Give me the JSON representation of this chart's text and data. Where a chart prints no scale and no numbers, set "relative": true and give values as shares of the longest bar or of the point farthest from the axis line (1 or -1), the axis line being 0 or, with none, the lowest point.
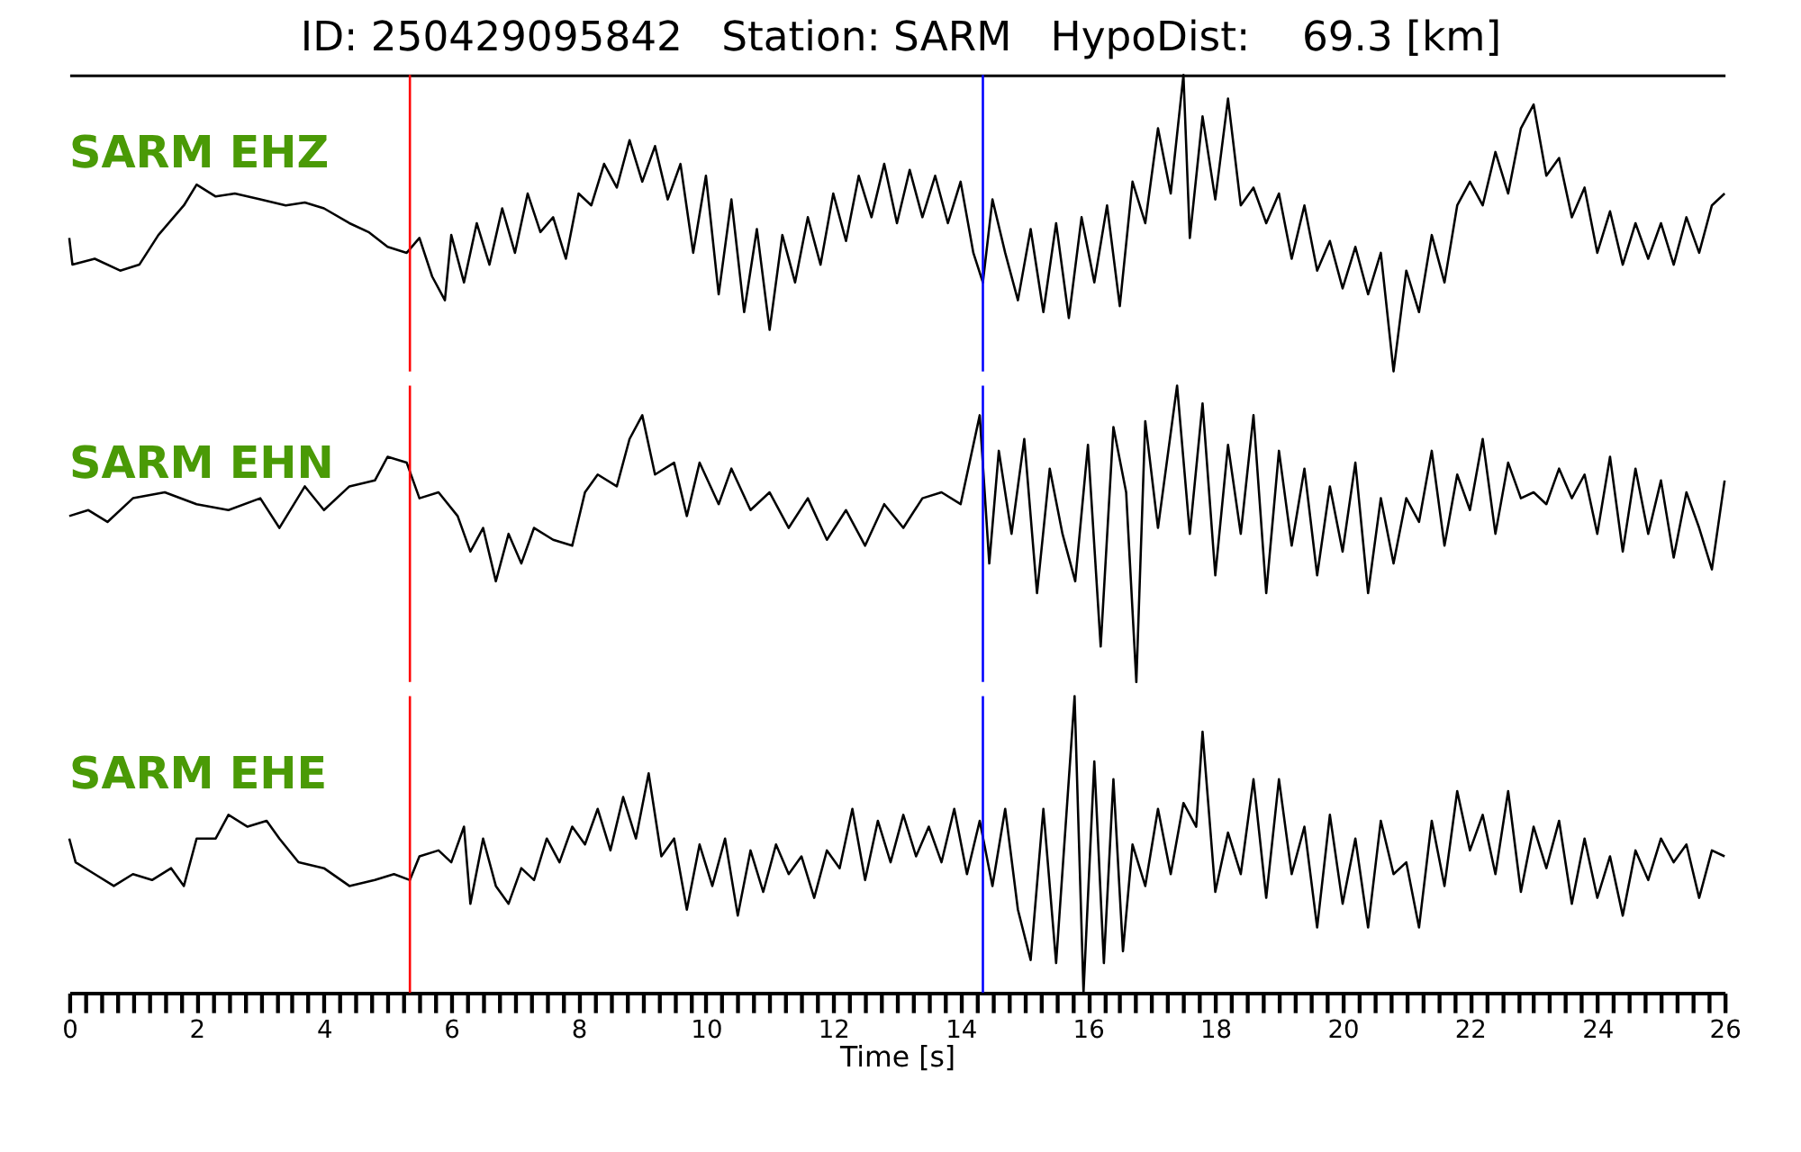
{
  "chart_data": [
    {
      "type": "line",
      "title": "ID: 250429095842   Station: SARM   HypoDist:    69.3 [km]",
      "relative": true,
      "xlim": [
        0,
        26
      ],
      "tick_labels": false,
      "grid": false,
      "marker": "none",
      "line_style": "solid",
      "ref_lines": [
        {
          "axis": "x",
          "value": 5.35,
          "color": "#ff0000"
        },
        {
          "axis": "x",
          "value": 14.35,
          "color": "#0000ff"
        }
      ],
      "x": [
        0,
        0.05,
        0.4,
        0.8,
        1.1,
        1.4,
        1.8,
        2.0,
        2.3,
        2.6,
        3.0,
        3.4,
        3.7,
        4.0,
        4.4,
        4.7,
        5.0,
        5.3,
        5.5,
        5.7,
        5.9,
        6.0,
        6.2,
        6.4,
        6.6,
        6.8,
        7.0,
        7.2,
        7.4,
        7.6,
        7.8,
        8.0,
        8.2,
        8.4,
        8.6,
        8.8,
        9.0,
        9.2,
        9.4,
        9.6,
        9.8,
        10.0,
        10.2,
        10.4,
        10.6,
        10.8,
        11.0,
        11.2,
        11.4,
        11.6,
        11.8,
        12.0,
        12.2,
        12.4,
        12.6,
        12.8,
        13.0,
        13.2,
        13.4,
        13.6,
        13.8,
        14.0,
        14.2,
        14.35,
        14.5,
        14.7,
        14.9,
        15.1,
        15.3,
        15.5,
        15.7,
        15.9,
        16.1,
        16.3,
        16.5,
        16.7,
        16.9,
        17.1,
        17.3,
        17.5,
        17.6,
        17.8,
        18.0,
        18.2,
        18.4,
        18.6,
        18.8,
        19.0,
        19.2,
        19.4,
        19.6,
        19.8,
        20.0,
        20.2,
        20.4,
        20.6,
        20.8,
        21.0,
        21.2,
        21.4,
        21.6,
        21.8,
        22.0,
        22.2,
        22.4,
        22.6,
        22.8,
        23.0,
        23.2,
        23.4,
        23.6,
        23.8,
        24.0,
        24.2,
        24.4,
        24.6,
        24.8,
        25.0,
        25.2,
        25.4,
        25.6,
        25.8,
        26.0
      ],
      "series": [
        {
          "name": "SARM EHZ",
          "color": "#000000",
          "values": [
            0.45,
            0.36,
            0.38,
            0.34,
            0.36,
            0.46,
            0.56,
            0.63,
            0.59,
            0.6,
            0.58,
            0.56,
            0.57,
            0.55,
            0.5,
            0.47,
            0.42,
            0.4,
            0.45,
            0.32,
            0.24,
            0.46,
            0.3,
            0.5,
            0.36,
            0.55,
            0.4,
            0.6,
            0.47,
            0.52,
            0.38,
            0.6,
            0.56,
            0.7,
            0.62,
            0.78,
            0.64,
            0.76,
            0.58,
            0.7,
            0.4,
            0.66,
            0.26,
            0.58,
            0.2,
            0.48,
            0.14,
            0.46,
            0.3,
            0.52,
            0.36,
            0.6,
            0.44,
            0.66,
            0.52,
            0.7,
            0.5,
            0.68,
            0.52,
            0.66,
            0.5,
            0.64,
            0.4,
            0.3,
            0.58,
            0.4,
            0.24,
            0.48,
            0.2,
            0.5,
            0.18,
            0.52,
            0.3,
            0.56,
            0.22,
            0.64,
            0.5,
            0.82,
            0.6,
            1.0,
            0.45,
            0.86,
            0.58,
            0.92,
            0.56,
            0.62,
            0.5,
            0.6,
            0.38,
            0.56,
            0.34,
            0.44,
            0.28,
            0.42,
            0.26,
            0.4,
            0.0,
            0.34,
            0.2,
            0.46,
            0.3,
            0.56,
            0.64,
            0.56,
            0.74,
            0.6,
            0.82,
            0.9,
            0.66,
            0.72,
            0.52,
            0.62,
            0.4,
            0.54,
            0.36,
            0.5,
            0.38,
            0.5,
            0.36,
            0.52,
            0.4,
            0.56,
            0.6
          ]
        }
      ]
    },
    {
      "type": "line",
      "relative": true,
      "xlim": [
        0,
        26
      ],
      "tick_labels": false,
      "grid": false,
      "marker": "none",
      "line_style": "solid",
      "ref_lines": [
        {
          "axis": "x",
          "value": 5.35,
          "color": "#ff0000"
        },
        {
          "axis": "x",
          "value": 14.35,
          "color": "#0000ff"
        }
      ],
      "x": [
        0,
        0.3,
        0.6,
        1.0,
        1.5,
        2.0,
        2.5,
        3.0,
        3.3,
        3.7,
        4.0,
        4.4,
        4.8,
        5.0,
        5.3,
        5.5,
        5.8,
        6.1,
        6.3,
        6.5,
        6.7,
        6.9,
        7.1,
        7.3,
        7.6,
        7.9,
        8.1,
        8.3,
        8.6,
        8.8,
        9.0,
        9.2,
        9.5,
        9.7,
        9.9,
        10.2,
        10.4,
        10.7,
        11.0,
        11.3,
        11.6,
        11.9,
        12.2,
        12.5,
        12.8,
        13.1,
        13.4,
        13.7,
        14.0,
        14.3,
        14.45,
        14.6,
        14.8,
        15.0,
        15.2,
        15.4,
        15.6,
        15.8,
        16.0,
        16.2,
        16.4,
        16.6,
        16.76,
        16.9,
        17.1,
        17.4,
        17.6,
        17.8,
        18.0,
        18.2,
        18.4,
        18.6,
        18.8,
        19.0,
        19.2,
        19.4,
        19.6,
        19.8,
        20.0,
        20.2,
        20.4,
        20.6,
        20.8,
        21.0,
        21.2,
        21.4,
        21.6,
        21.8,
        22.0,
        22.2,
        22.4,
        22.6,
        22.8,
        23.0,
        23.2,
        23.4,
        23.6,
        23.8,
        24.0,
        24.2,
        24.4,
        24.6,
        24.8,
        25.0,
        25.2,
        25.4,
        25.6,
        25.8,
        26.0
      ],
      "series": [
        {
          "name": "SARM EHN",
          "color": "#000000",
          "values": [
            0.56,
            0.58,
            0.54,
            0.62,
            0.64,
            0.6,
            0.58,
            0.62,
            0.52,
            0.66,
            0.58,
            0.66,
            0.68,
            0.76,
            0.74,
            0.62,
            0.64,
            0.56,
            0.44,
            0.52,
            0.34,
            0.5,
            0.4,
            0.52,
            0.48,
            0.46,
            0.64,
            0.7,
            0.66,
            0.82,
            0.9,
            0.7,
            0.74,
            0.56,
            0.74,
            0.6,
            0.72,
            0.58,
            0.64,
            0.52,
            0.62,
            0.48,
            0.58,
            0.46,
            0.6,
            0.52,
            0.62,
            0.64,
            0.6,
            0.9,
            0.4,
            0.78,
            0.5,
            0.82,
            0.3,
            0.72,
            0.5,
            0.34,
            0.8,
            0.12,
            0.86,
            0.64,
            0.0,
            0.88,
            0.52,
            1.0,
            0.5,
            0.94,
            0.36,
            0.8,
            0.5,
            0.9,
            0.3,
            0.78,
            0.46,
            0.72,
            0.36,
            0.66,
            0.44,
            0.74,
            0.3,
            0.62,
            0.4,
            0.62,
            0.54,
            0.78,
            0.46,
            0.7,
            0.58,
            0.82,
            0.5,
            0.74,
            0.62,
            0.64,
            0.6,
            0.72,
            0.62,
            0.7,
            0.5,
            0.76,
            0.44,
            0.72,
            0.5,
            0.68,
            0.42,
            0.64,
            0.52,
            0.38,
            0.68
          ]
        }
      ]
    },
    {
      "type": "line",
      "relative": true,
      "xlabel": "Time [s]",
      "xlim": [
        0,
        26
      ],
      "tick_labels": "x",
      "grid": false,
      "marker": "none",
      "line_style": "solid",
      "xticks": [
        0,
        {
          "value": 0.25,
          "label": null
        },
        {
          "value": 0.5,
          "label": null
        },
        {
          "value": 0.75,
          "label": null
        },
        {
          "value": 1,
          "label": null
        },
        {
          "value": 1.25,
          "label": null
        },
        {
          "value": 1.5,
          "label": null
        },
        {
          "value": 1.75,
          "label": null
        },
        2,
        {
          "value": 2.25,
          "label": null
        },
        {
          "value": 2.5,
          "label": null
        },
        {
          "value": 2.75,
          "label": null
        },
        {
          "value": 3,
          "label": null
        },
        {
          "value": 3.25,
          "label": null
        },
        {
          "value": 3.5,
          "label": null
        },
        {
          "value": 3.75,
          "label": null
        },
        4,
        {
          "value": 4.25,
          "label": null
        },
        {
          "value": 4.5,
          "label": null
        },
        {
          "value": 4.75,
          "label": null
        },
        {
          "value": 5,
          "label": null
        },
        {
          "value": 5.25,
          "label": null
        },
        {
          "value": 5.5,
          "label": null
        },
        {
          "value": 5.75,
          "label": null
        },
        6,
        {
          "value": 6.25,
          "label": null
        },
        {
          "value": 6.5,
          "label": null
        },
        {
          "value": 6.75,
          "label": null
        },
        {
          "value": 7,
          "label": null
        },
        {
          "value": 7.25,
          "label": null
        },
        {
          "value": 7.5,
          "label": null
        },
        {
          "value": 7.75,
          "label": null
        },
        8,
        {
          "value": 8.25,
          "label": null
        },
        {
          "value": 8.5,
          "label": null
        },
        {
          "value": 8.75,
          "label": null
        },
        {
          "value": 9,
          "label": null
        },
        {
          "value": 9.25,
          "label": null
        },
        {
          "value": 9.5,
          "label": null
        },
        {
          "value": 9.75,
          "label": null
        },
        10,
        {
          "value": 10.25,
          "label": null
        },
        {
          "value": 10.5,
          "label": null
        },
        {
          "value": 10.75,
          "label": null
        },
        {
          "value": 11,
          "label": null
        },
        {
          "value": 11.25,
          "label": null
        },
        {
          "value": 11.5,
          "label": null
        },
        {
          "value": 11.75,
          "label": null
        },
        12,
        {
          "value": 12.25,
          "label": null
        },
        {
          "value": 12.5,
          "label": null
        },
        {
          "value": 12.75,
          "label": null
        },
        {
          "value": 13,
          "label": null
        },
        {
          "value": 13.25,
          "label": null
        },
        {
          "value": 13.5,
          "label": null
        },
        {
          "value": 13.75,
          "label": null
        },
        14,
        {
          "value": 14.25,
          "label": null
        },
        {
          "value": 14.5,
          "label": null
        },
        {
          "value": 14.75,
          "label": null
        },
        {
          "value": 15,
          "label": null
        },
        {
          "value": 15.25,
          "label": null
        },
        {
          "value": 15.5,
          "label": null
        },
        {
          "value": 15.75,
          "label": null
        },
        16,
        {
          "value": 16.25,
          "label": null
        },
        {
          "value": 16.5,
          "label": null
        },
        {
          "value": 16.75,
          "label": null
        },
        {
          "value": 17,
          "label": null
        },
        {
          "value": 17.25,
          "label": null
        },
        {
          "value": 17.5,
          "label": null
        },
        {
          "value": 17.75,
          "label": null
        },
        18,
        {
          "value": 18.25,
          "label": null
        },
        {
          "value": 18.5,
          "label": null
        },
        {
          "value": 18.75,
          "label": null
        },
        {
          "value": 19,
          "label": null
        },
        {
          "value": 19.25,
          "label": null
        },
        {
          "value": 19.5,
          "label": null
        },
        {
          "value": 19.75,
          "label": null
        },
        20,
        {
          "value": 20.25,
          "label": null
        },
        {
          "value": 20.5,
          "label": null
        },
        {
          "value": 20.75,
          "label": null
        },
        {
          "value": 21,
          "label": null
        },
        {
          "value": 21.25,
          "label": null
        },
        {
          "value": 21.5,
          "label": null
        },
        {
          "value": 21.75,
          "label": null
        },
        22,
        {
          "value": 22.25,
          "label": null
        },
        {
          "value": 22.5,
          "label": null
        },
        {
          "value": 22.75,
          "label": null
        },
        {
          "value": 23,
          "label": null
        },
        {
          "value": 23.25,
          "label": null
        },
        {
          "value": 23.5,
          "label": null
        },
        {
          "value": 23.75,
          "label": null
        },
        24,
        {
          "value": 24.25,
          "label": null
        },
        {
          "value": 24.5,
          "label": null
        },
        {
          "value": 24.75,
          "label": null
        },
        {
          "value": 25,
          "label": null
        },
        {
          "value": 25.25,
          "label": null
        },
        {
          "value": 25.5,
          "label": null
        },
        {
          "value": 25.75,
          "label": null
        },
        26
      ],
      "ref_lines": [
        {
          "axis": "x",
          "value": 5.35,
          "color": "#ff0000"
        },
        {
          "axis": "x",
          "value": 14.35,
          "color": "#0000ff"
        }
      ],
      "x": [
        0,
        0.1,
        0.4,
        0.7,
        1.0,
        1.3,
        1.6,
        1.8,
        2.0,
        2.3,
        2.5,
        2.8,
        3.1,
        3.3,
        3.6,
        4.0,
        4.4,
        4.8,
        5.1,
        5.35,
        5.5,
        5.8,
        6.0,
        6.2,
        6.3,
        6.5,
        6.7,
        6.9,
        7.1,
        7.3,
        7.5,
        7.7,
        7.9,
        8.1,
        8.3,
        8.5,
        8.7,
        8.9,
        9.1,
        9.3,
        9.5,
        9.7,
        9.9,
        10.1,
        10.3,
        10.5,
        10.7,
        10.9,
        11.1,
        11.3,
        11.5,
        11.7,
        11.9,
        12.1,
        12.3,
        12.5,
        12.7,
        12.9,
        13.1,
        13.3,
        13.5,
        13.7,
        13.9,
        14.1,
        14.3,
        14.5,
        14.7,
        14.9,
        15.1,
        15.3,
        15.5,
        15.79,
        15.93,
        16.1,
        16.25,
        16.4,
        16.55,
        16.7,
        16.9,
        17.1,
        17.3,
        17.5,
        17.7,
        17.8,
        18.0,
        18.2,
        18.4,
        18.6,
        18.8,
        19.0,
        19.2,
        19.4,
        19.6,
        19.8,
        20.0,
        20.2,
        20.4,
        20.6,
        20.8,
        21.0,
        21.2,
        21.4,
        21.6,
        21.8,
        22.0,
        22.2,
        22.4,
        22.6,
        22.8,
        23.0,
        23.2,
        23.4,
        23.6,
        23.8,
        24.0,
        24.2,
        24.4,
        24.6,
        24.8,
        25.0,
        25.2,
        25.4,
        25.6,
        25.8,
        26.0
      ],
      "series": [
        {
          "name": "SARM EHE",
          "color": "#000000",
          "values": [
            0.52,
            0.44,
            0.4,
            0.36,
            0.4,
            0.38,
            0.42,
            0.36,
            0.52,
            0.52,
            0.6,
            0.56,
            0.58,
            0.52,
            0.44,
            0.42,
            0.36,
            0.38,
            0.4,
            0.38,
            0.46,
            0.48,
            0.44,
            0.56,
            0.3,
            0.52,
            0.36,
            0.3,
            0.42,
            0.38,
            0.52,
            0.44,
            0.56,
            0.5,
            0.62,
            0.48,
            0.66,
            0.52,
            0.74,
            0.46,
            0.52,
            0.28,
            0.5,
            0.36,
            0.52,
            0.26,
            0.48,
            0.34,
            0.5,
            0.4,
            0.46,
            0.32,
            0.48,
            0.42,
            0.62,
            0.38,
            0.58,
            0.44,
            0.6,
            0.46,
            0.56,
            0.44,
            0.62,
            0.4,
            0.58,
            0.36,
            0.62,
            0.28,
            0.11,
            0.62,
            0.1,
            1.0,
            0.0,
            0.78,
            0.1,
            0.72,
            0.14,
            0.5,
            0.36,
            0.62,
            0.4,
            0.64,
            0.56,
            0.88,
            0.34,
            0.54,
            0.4,
            0.72,
            0.32,
            0.72,
            0.4,
            0.56,
            0.22,
            0.6,
            0.3,
            0.52,
            0.22,
            0.58,
            0.4,
            0.44,
            0.22,
            0.58,
            0.36,
            0.68,
            0.48,
            0.6,
            0.4,
            0.68,
            0.34,
            0.56,
            0.42,
            0.58,
            0.3,
            0.52,
            0.32,
            0.46,
            0.26,
            0.48,
            0.38,
            0.52,
            0.44,
            0.5,
            0.32,
            0.48,
            0.46
          ]
        }
      ]
    }
  ]
}
